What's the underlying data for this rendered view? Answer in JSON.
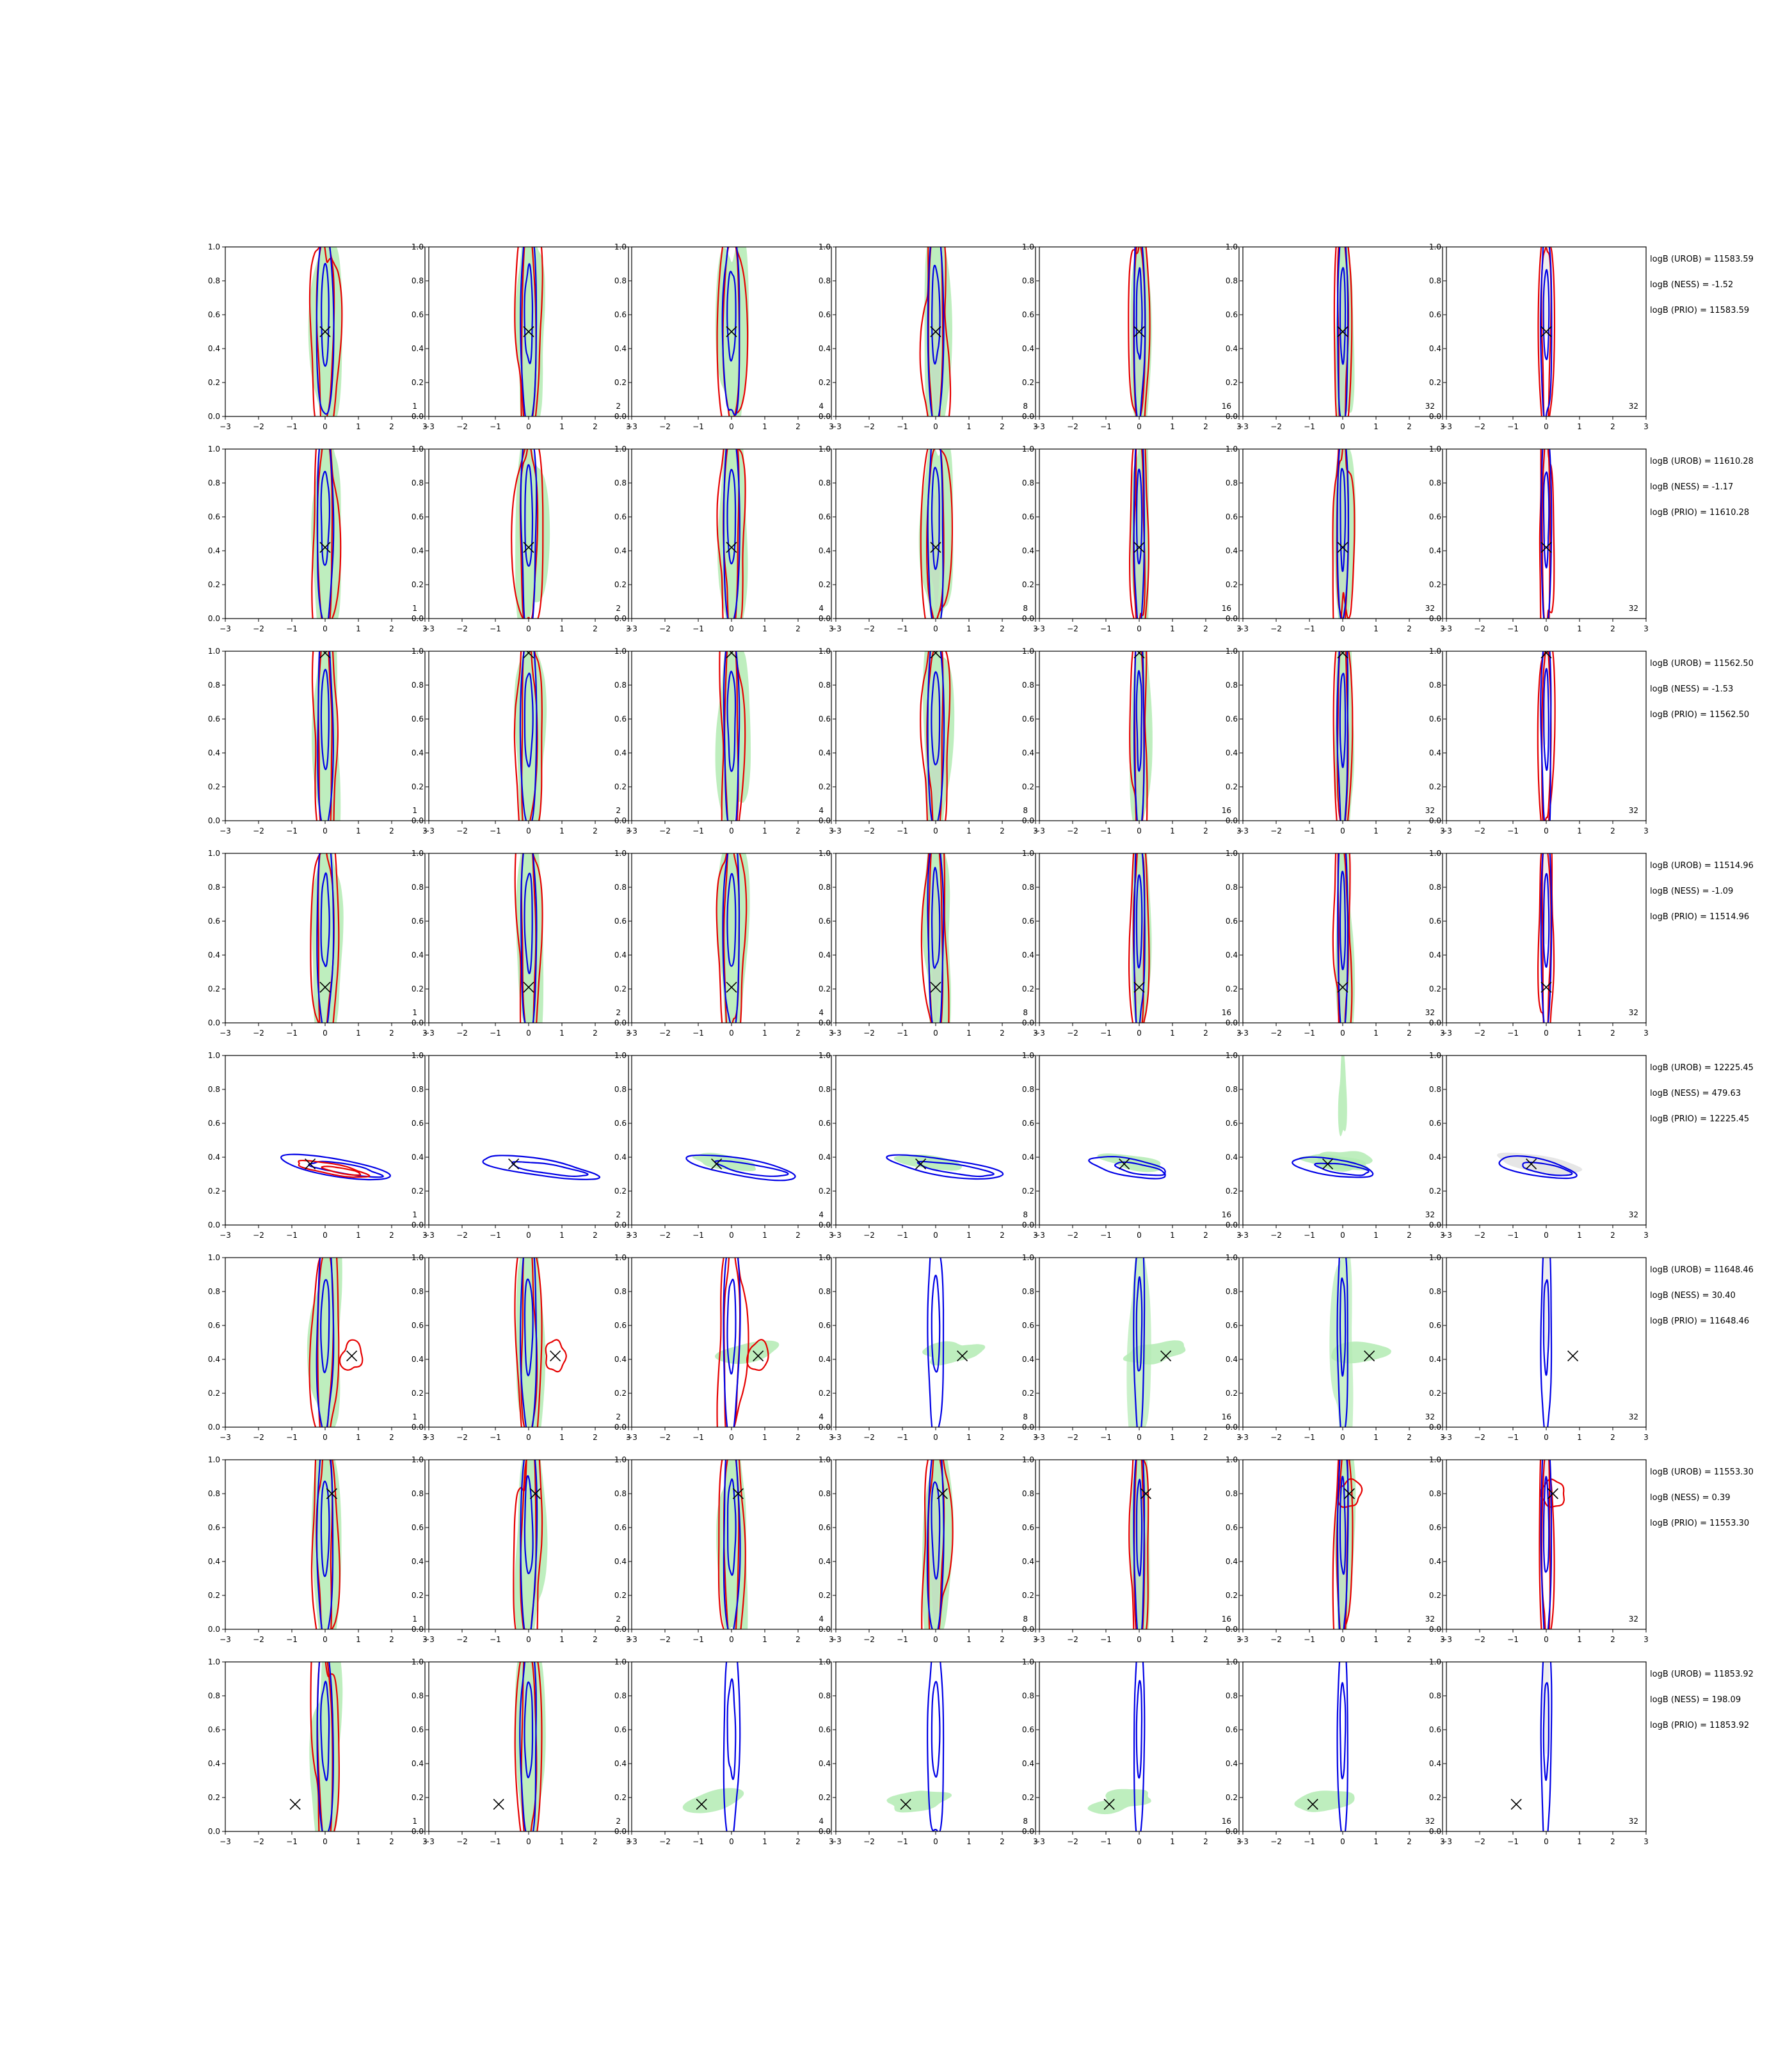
{
  "figure": {
    "colors": {
      "fill_green": "#b3ebb3",
      "fill_grey": "#c8c8c8",
      "contour_red": "#e60000",
      "contour_blue": "#0000e6",
      "marker": "#000000"
    }
  },
  "chart_data": {
    "type": "contour",
    "xlim": [
      -3,
      3
    ],
    "ylim": [
      0,
      1
    ],
    "xticks": [
      "−3",
      "−2",
      "−1",
      "0",
      "1",
      "2",
      "3"
    ],
    "yticks": [
      "0.0",
      "0.2",
      "0.4",
      "0.6",
      "0.8",
      "1.0"
    ],
    "grid": false,
    "rows": [
      {
        "marker": {
          "x": 0.0,
          "y": 0.5
        },
        "panel_labels": [
          "1",
          "2",
          "4",
          "8",
          "16",
          "32",
          "32"
        ],
        "annotations": [
          "logB (UROB) = 11583.59",
          "logB (NESS) = -1.52",
          "logB (PRIO) = 11583.59"
        ]
      },
      {
        "marker": {
          "x": 0.0,
          "y": 0.42
        },
        "panel_labels": [
          "1",
          "2",
          "4",
          "8",
          "16",
          "32",
          "32"
        ],
        "annotations": [
          "logB (UROB) = 11610.28",
          "logB (NESS) = -1.17",
          "logB (PRIO) = 11610.28"
        ]
      },
      {
        "marker": {
          "x": 0.0,
          "y": 0.99
        },
        "panel_labels": [
          "1",
          "2",
          "4",
          "8",
          "16",
          "32",
          "32"
        ],
        "annotations": [
          "logB (UROB) = 11562.50",
          "logB (NESS) = -1.53",
          "logB (PRIO) = 11562.50"
        ]
      },
      {
        "marker": {
          "x": 0.0,
          "y": 0.21
        },
        "panel_labels": [
          "1",
          "2",
          "4",
          "8",
          "16",
          "32",
          "32"
        ],
        "annotations": [
          "logB (UROB) = 11514.96",
          "logB (NESS) = -1.09",
          "logB (PRIO) = 11514.96"
        ]
      },
      {
        "marker": {
          "x": -0.45,
          "y": 0.36
        },
        "panel_labels": [
          "1",
          "2",
          "4",
          "8",
          "16",
          "32",
          "32"
        ],
        "annotations": [
          "logB (UROB) = 12225.45",
          "logB (NESS) = 479.63",
          "logB (PRIO) = 12225.45"
        ]
      },
      {
        "marker": {
          "x": 0.8,
          "y": 0.42
        },
        "panel_labels": [
          "1",
          "2",
          "4",
          "8",
          "16",
          "32",
          "32"
        ],
        "annotations": [
          "logB (UROB) = 11648.46",
          "logB (NESS) = 30.40",
          "logB (PRIO) = 11648.46"
        ]
      },
      {
        "marker": {
          "x": 0.2,
          "y": 0.8
        },
        "panel_labels": [
          "1",
          "2",
          "4",
          "8",
          "16",
          "32",
          "32"
        ],
        "annotations": [
          "logB (UROB) = 11553.30",
          "logB (NESS) = 0.39",
          "logB (PRIO) = 11553.30"
        ]
      },
      {
        "marker": {
          "x": -0.9,
          "y": 0.16
        },
        "panel_labels": [
          "1",
          "2",
          "4",
          "8",
          "16",
          "32",
          "32"
        ],
        "annotations": [
          "logB (UROB) = 11853.92",
          "logB (NESS) = 198.09",
          "logB (PRIO) = 11853.92"
        ]
      }
    ]
  }
}
